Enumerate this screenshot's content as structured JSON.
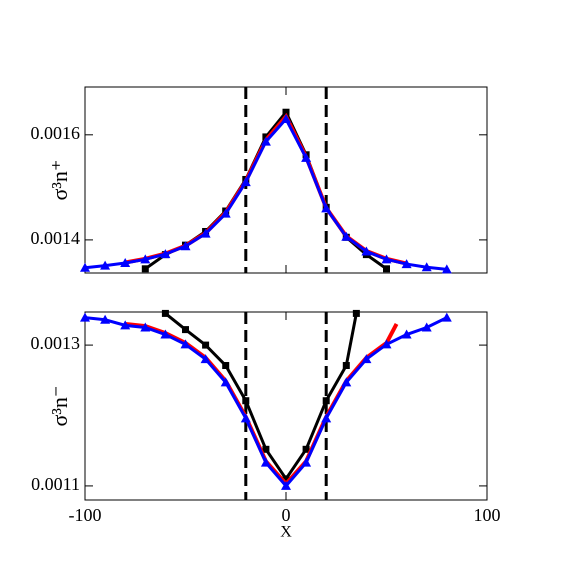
{
  "chart_data": [
    {
      "type": "line",
      "ylabel": "σ³n⁺",
      "xlim": [
        -100,
        100
      ],
      "xticks": [
        -100,
        0,
        100
      ],
      "ylim": [
        0.001337,
        0.001691
      ],
      "yticks": [
        0.0014,
        0.0016
      ],
      "vlines": [
        -20,
        20
      ],
      "series": [
        {
          "color": "#000000",
          "marker": "square",
          "x": [
            -70,
            -60,
            -50,
            -40,
            -30,
            -20,
            -10,
            0,
            10,
            20,
            30,
            40,
            50
          ],
          "values": [
            0.001345,
            0.001372,
            0.00139,
            0.001416,
            0.001455,
            0.001515,
            0.001596,
            0.001643,
            0.001562,
            0.001462,
            0.001405,
            0.001372,
            0.001345
          ]
        },
        {
          "color": "#ff0000",
          "marker": "none",
          "x": [
            -80,
            -70,
            -60,
            -50,
            -40,
            -30,
            -20,
            -10,
            0,
            10,
            20,
            30,
            40,
            50,
            60
          ],
          "values": [
            0.001357,
            0.001364,
            0.001374,
            0.001389,
            0.001413,
            0.001452,
            0.001512,
            0.00159,
            0.001635,
            0.001558,
            0.001461,
            0.001407,
            0.001379,
            0.001364,
            0.001355
          ]
        },
        {
          "color": "#0000ff",
          "marker": "triangle",
          "x": [
            -100,
            -90,
            -80,
            -70,
            -60,
            -50,
            -40,
            -30,
            -20,
            -10,
            0,
            10,
            20,
            30,
            40,
            50,
            60,
            70,
            80
          ],
          "values": [
            0.001347,
            0.001351,
            0.001356,
            0.001363,
            0.001373,
            0.001388,
            0.001412,
            0.00145,
            0.00151,
            0.001587,
            0.00163,
            0.001556,
            0.00146,
            0.001406,
            0.001378,
            0.001363,
            0.001354,
            0.001348,
            0.001344
          ]
        }
      ]
    },
    {
      "type": "line",
      "ylabel": "σ³n⁻",
      "xlabel": "X",
      "xlim": [
        -100,
        100
      ],
      "xticks": [
        -100,
        0,
        100
      ],
      "ylim": [
        0.00108,
        0.001347
      ],
      "yticks": [
        0.0011,
        0.0013
      ],
      "vlines": [
        -20,
        20
      ],
      "series": [
        {
          "color": "#000000",
          "marker": "square",
          "x": [
            -60,
            -50,
            -40,
            -30,
            -20,
            -10,
            0,
            10,
            20,
            30,
            35
          ],
          "values": [
            0.001345,
            0.001322,
            0.0013,
            0.001271,
            0.001221,
            0.001152,
            0.00111,
            0.001152,
            0.001221,
            0.001271,
            0.001345
          ]
        },
        {
          "color": "#ff0000",
          "marker": "none",
          "x": [
            -80,
            -70,
            -60,
            -50,
            -40,
            -30,
            -20,
            -10,
            0,
            10,
            20,
            30,
            40,
            50,
            55
          ],
          "values": [
            0.00133,
            0.001327,
            0.001317,
            0.001303,
            0.001282,
            0.001249,
            0.001198,
            0.001135,
            0.001103,
            0.001135,
            0.001198,
            0.001249,
            0.001282,
            0.001303,
            0.00133
          ]
        },
        {
          "color": "#0000ff",
          "marker": "triangle",
          "x": [
            -100,
            -90,
            -80,
            -70,
            -60,
            -50,
            -40,
            -30,
            -20,
            -10,
            0,
            10,
            20,
            30,
            40,
            50,
            60,
            70,
            80
          ],
          "values": [
            0.001339,
            0.001336,
            0.001328,
            0.001325,
            0.001315,
            0.001301,
            0.00128,
            0.001247,
            0.001196,
            0.001133,
            0.0011,
            0.001133,
            0.001196,
            0.001247,
            0.00128,
            0.001301,
            0.001315,
            0.001325,
            0.001339
          ]
        }
      ]
    }
  ]
}
